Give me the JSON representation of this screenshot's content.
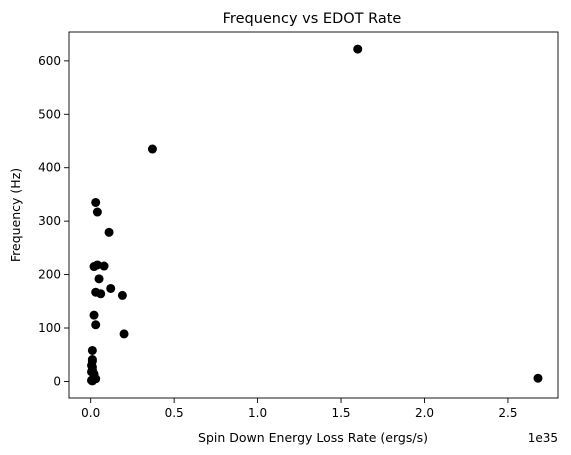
{
  "chart_data": {
    "type": "scatter",
    "title": "Frequency vs EDOT Rate",
    "xlabel": "Spin Down Energy Loss Rate (ergs/s)",
    "ylabel": "Frequency (Hz)",
    "x_offset_label": "1e35",
    "x_scale_factor": 1e+35,
    "xlim": [
      -0.13,
      2.8
    ],
    "ylim": [
      -31,
      654
    ],
    "xticks": [
      0.0,
      0.5,
      1.0,
      1.5,
      2.0,
      2.5
    ],
    "xtick_labels": [
      "0.0",
      "0.5",
      "1.0",
      "1.5",
      "2.0",
      "2.5"
    ],
    "yticks": [
      0,
      100,
      200,
      300,
      400,
      500,
      600
    ],
    "ytick_labels": [
      "0",
      "100",
      "200",
      "300",
      "400",
      "500",
      "600"
    ],
    "grid": false,
    "marker_color": "#000000",
    "series": [
      {
        "x": [
          1.6,
          0.37,
          0.03,
          0.04,
          0.11,
          0.04,
          0.02,
          0.08,
          0.05,
          0.12,
          0.03,
          0.06,
          0.19,
          0.02,
          0.03,
          0.2,
          0.01,
          0.01,
          0.01,
          0.005,
          0.01,
          0.01,
          0.005,
          0.02,
          0.03,
          0.01,
          0.005,
          0.01,
          2.68
        ],
        "y": [
          622,
          435,
          335,
          317,
          279,
          218,
          215,
          216,
          192,
          174,
          167,
          164,
          161,
          124,
          106,
          89,
          58,
          41,
          38,
          30,
          27,
          22,
          18,
          14,
          5,
          3,
          2,
          1,
          6
        ]
      }
    ]
  }
}
